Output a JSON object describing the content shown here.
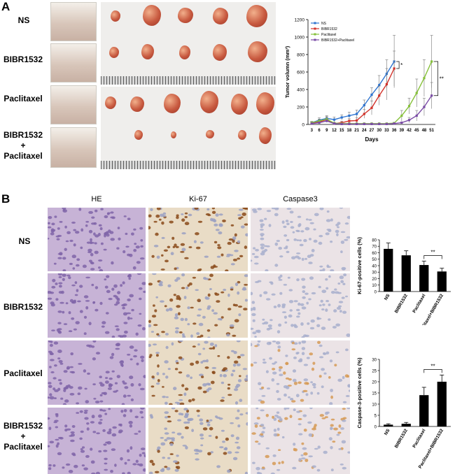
{
  "panel_a": {
    "letter": "A",
    "row_labels": [
      "NS",
      "BIBR1532",
      "Paclitaxel",
      "BIBR1532\n+\nPaclitaxel"
    ]
  },
  "panel_b": {
    "letter": "B",
    "column_headers": [
      "HE",
      "Ki-67",
      "Caspase3"
    ],
    "row_labels": [
      "NS",
      "BIBR1532",
      "Paclitaxel",
      "BIBR1532\n+\nPaclitaxel"
    ]
  },
  "chart_data": [
    {
      "type": "line",
      "ylabel": "Tumor volumn (mm³)",
      "xlabel": "Days",
      "x": [
        3,
        6,
        9,
        12,
        15,
        18,
        21,
        24,
        27,
        30,
        33,
        36,
        39,
        42,
        45,
        48,
        51
      ],
      "ylim": [
        0,
        1200
      ],
      "yticks": [
        0,
        200,
        400,
        600,
        800,
        1000,
        1200
      ],
      "legend_position": "top-left",
      "series": [
        {
          "name": "NS",
          "color": "#2e74d0",
          "x": [
            3,
            6,
            9,
            12,
            15,
            18,
            21,
            24,
            27,
            30,
            33,
            36
          ],
          "y": [
            20,
            50,
            70,
            55,
            80,
            100,
            120,
            220,
            340,
            450,
            580,
            720
          ],
          "err": [
            15,
            25,
            30,
            30,
            30,
            40,
            45,
            60,
            80,
            110,
            160,
            300
          ]
        },
        {
          "name": "BIBR1532",
          "color": "#d2322a",
          "x": [
            3,
            6,
            9,
            12,
            15,
            18,
            21,
            24,
            27,
            30,
            33,
            36
          ],
          "y": [
            15,
            30,
            55,
            10,
            20,
            40,
            45,
            120,
            190,
            330,
            460,
            640
          ],
          "err": [
            10,
            20,
            25,
            10,
            15,
            25,
            30,
            50,
            80,
            110,
            180,
            200
          ]
        },
        {
          "name": "Paclitaxel",
          "color": "#86c13a",
          "x": [
            3,
            6,
            9,
            12,
            15,
            18,
            21,
            24,
            27,
            30,
            33,
            36,
            39,
            42,
            45,
            48,
            51
          ],
          "y": [
            20,
            40,
            60,
            15,
            10,
            10,
            10,
            10,
            10,
            10,
            10,
            15,
            100,
            210,
            360,
            530,
            720
          ],
          "err": [
            10,
            20,
            30,
            10,
            5,
            5,
            5,
            5,
            5,
            5,
            5,
            10,
            60,
            90,
            160,
            210,
            300
          ]
        },
        {
          "name": "BIBR1532+Paclitaxel",
          "color": "#7a4ba6",
          "x": [
            3,
            6,
            9,
            12,
            15,
            18,
            21,
            24,
            27,
            30,
            33,
            36,
            39,
            42,
            45,
            48,
            51
          ],
          "y": [
            10,
            20,
            40,
            10,
            5,
            5,
            5,
            5,
            5,
            5,
            5,
            10,
            20,
            50,
            100,
            200,
            330
          ],
          "err": [
            5,
            10,
            15,
            5,
            3,
            3,
            3,
            3,
            3,
            3,
            3,
            5,
            10,
            30,
            60,
            100,
            150
          ]
        }
      ],
      "annotations": [
        "*",
        "**"
      ]
    },
    {
      "type": "bar",
      "ylabel": "Ki-67-positive cells (%)",
      "categories": [
        "NS",
        "BIBR1532",
        "Paclitaxel",
        "Paclitaxel+BIBR1532"
      ],
      "values": [
        66,
        56,
        41,
        31
      ],
      "err": [
        9,
        7,
        6,
        5
      ],
      "ylim": [
        0,
        80
      ],
      "yticks": [
        0,
        10,
        20,
        30,
        40,
        50,
        60,
        70,
        80
      ],
      "annotation": "**"
    },
    {
      "type": "bar",
      "ylabel": "Caspase-3-positive cells (%)",
      "categories": [
        "NS",
        "BIBR1532",
        "Paclitaxel",
        "Paclitaxel+BIBR1532"
      ],
      "values": [
        0.8,
        1.2,
        14,
        20
      ],
      "err": [
        0.4,
        0.6,
        3.5,
        3
      ],
      "ylim": [
        0,
        30
      ],
      "yticks": [
        0,
        5,
        10,
        15,
        20,
        25,
        30
      ],
      "annotation": "**"
    }
  ]
}
